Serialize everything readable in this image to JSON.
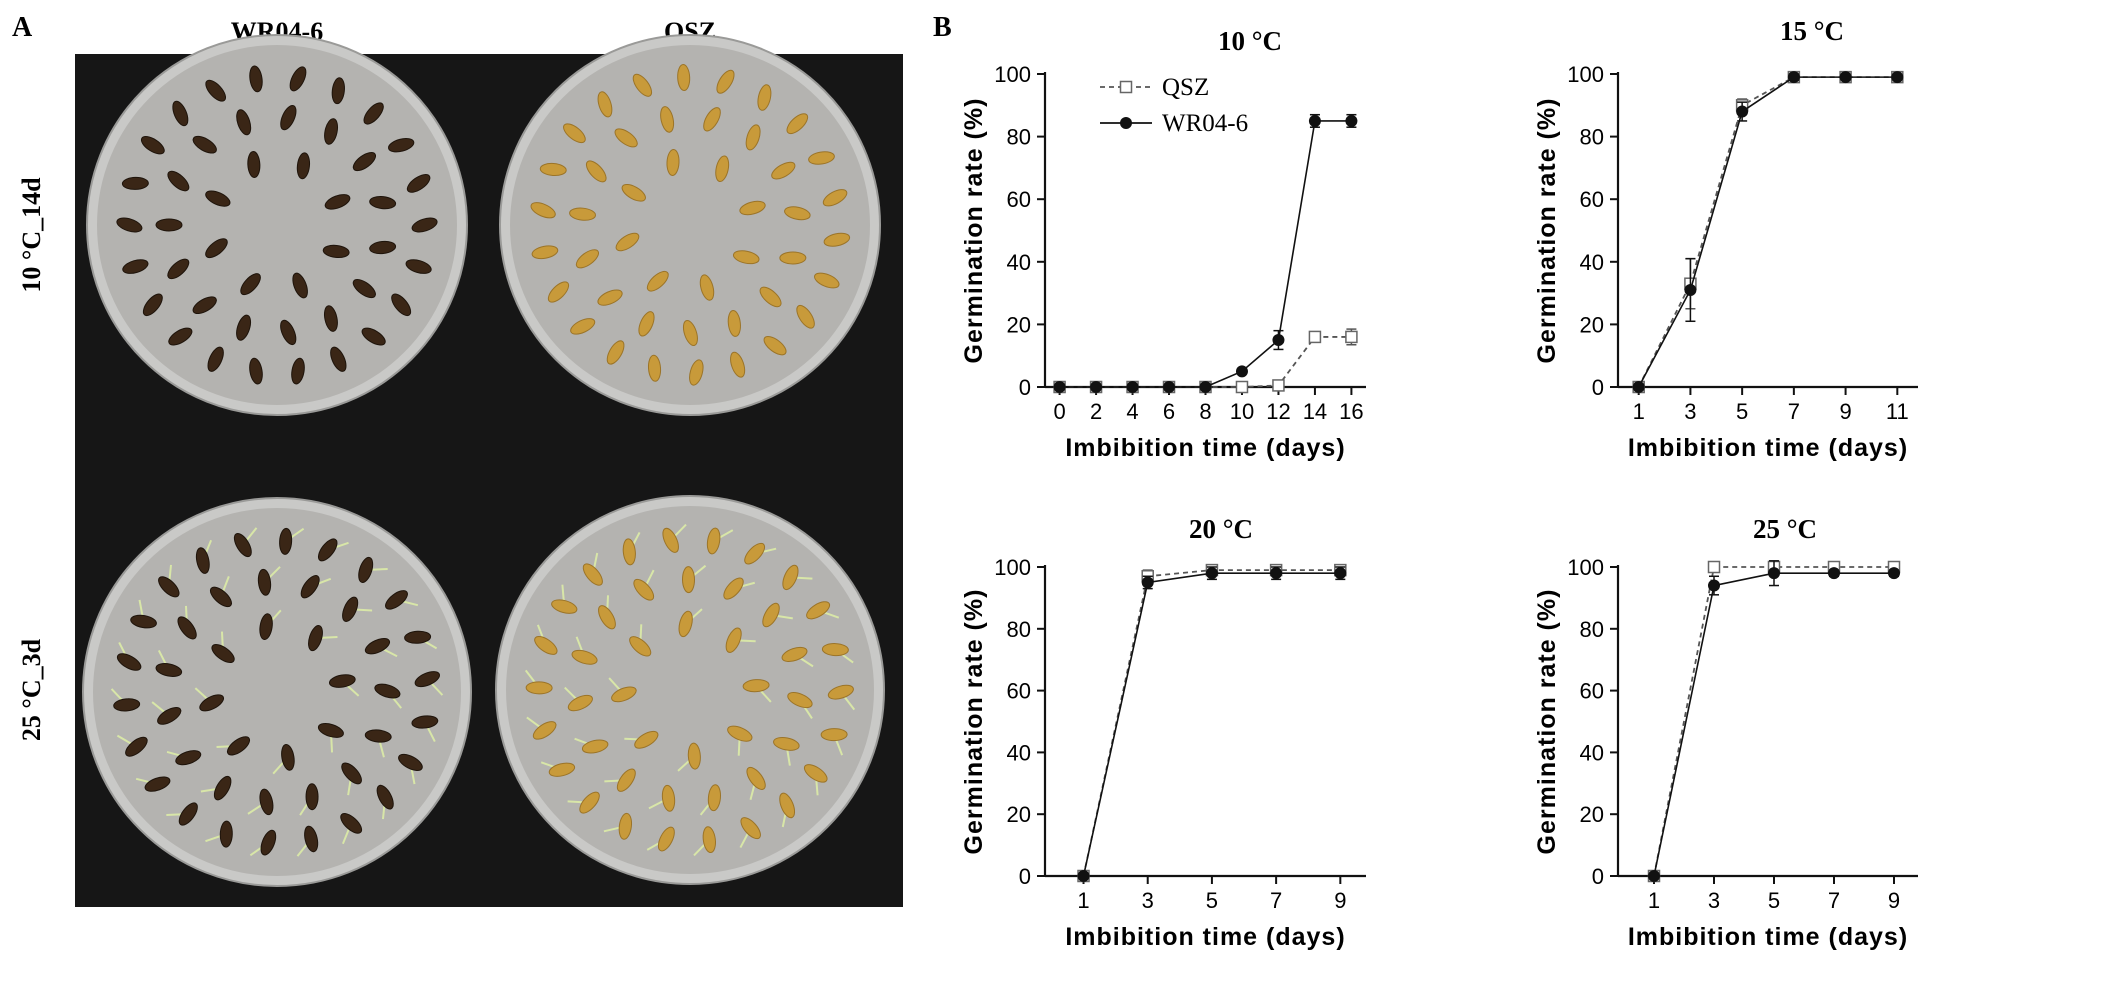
{
  "panel_a": {
    "letter": "A",
    "col_labels": [
      "WR04-6",
      "QSZ"
    ],
    "row_labels": [
      "10 °C_14d",
      "25 °C_3d"
    ]
  },
  "panel_b": {
    "letter": "B"
  },
  "colors": {
    "photo_background": "#161616",
    "dish": "#c9c9c7",
    "paper": "#b4b3b0",
    "seed_dark": "#3a2616",
    "seed_light": "#c89a3a",
    "sprout": "#d8e6a8"
  },
  "chart_data": [
    {
      "type": "line",
      "title": "10 °C",
      "xlabel": "Imbibition time (days)",
      "ylabel": "Germination rate (%)",
      "x": [
        0,
        2,
        4,
        6,
        8,
        10,
        12,
        14,
        16
      ],
      "xlim": [
        -0.8,
        16.8
      ],
      "ylim": [
        0,
        100
      ],
      "yticks": [
        0,
        20,
        40,
        60,
        80,
        100
      ],
      "legend_position": "top-left",
      "series": [
        {
          "name": "QSZ",
          "style": "dashed-open-square",
          "values": [
            0,
            0,
            0,
            0,
            0,
            0,
            0.5,
            16,
            16
          ],
          "errors": [
            0,
            0,
            0,
            0,
            0,
            0,
            0.5,
            1.5,
            2.5
          ]
        },
        {
          "name": "WR04-6",
          "style": "solid-filled-circle",
          "values": [
            0,
            0,
            0,
            0,
            0,
            5,
            15,
            85,
            85
          ],
          "errors": [
            0,
            0,
            0,
            0,
            0,
            0.8,
            3,
            2,
            2
          ]
        }
      ]
    },
    {
      "type": "line",
      "title": "15 °C",
      "xlabel": "Imbibition time (days)",
      "ylabel": "Germination rate (%)",
      "x": [
        1,
        3,
        5,
        7,
        9,
        11
      ],
      "xlim": [
        0.2,
        11.8
      ],
      "ylim": [
        0,
        100
      ],
      "yticks": [
        0,
        20,
        40,
        60,
        80,
        100
      ],
      "series": [
        {
          "style": "dashed-open-square",
          "values": [
            0,
            33,
            90,
            99,
            99,
            99
          ],
          "errors": [
            0,
            8,
            2,
            1,
            0.5,
            0.5
          ]
        },
        {
          "style": "solid-filled-circle",
          "values": [
            0,
            31,
            88,
            99,
            99,
            99
          ],
          "errors": [
            0,
            10,
            3,
            1,
            0.5,
            0.5
          ]
        }
      ]
    },
    {
      "type": "line",
      "title": "20 °C",
      "xlabel": "Imbibition time (days)",
      "ylabel": "Germination rate (%)",
      "x": [
        1,
        3,
        5,
        7,
        9
      ],
      "xlim": [
        -0.2,
        9.8
      ],
      "ylim": [
        0,
        100
      ],
      "yticks": [
        0,
        20,
        40,
        60,
        80,
        100
      ],
      "series": [
        {
          "style": "dashed-open-square",
          "values": [
            0,
            97,
            99,
            99,
            99
          ],
          "errors": [
            0,
            2,
            1,
            1,
            1
          ]
        },
        {
          "style": "solid-filled-circle",
          "values": [
            0,
            95,
            98,
            98,
            98
          ],
          "errors": [
            0,
            2,
            2,
            2,
            2
          ]
        }
      ]
    },
    {
      "type": "line",
      "title": "25 °C",
      "xlabel": "Imbibition time (days)",
      "ylabel": "Germination rate (%)",
      "x": [
        1,
        3,
        5,
        7,
        9
      ],
      "xlim": [
        -0.2,
        9.8
      ],
      "ylim": [
        0,
        100
      ],
      "yticks": [
        0,
        20,
        40,
        60,
        80,
        100
      ],
      "series": [
        {
          "style": "dashed-open-square",
          "values": [
            0,
            100,
            100,
            100,
            100
          ],
          "errors": [
            0,
            0,
            0,
            0,
            0
          ]
        },
        {
          "style": "solid-filled-circle",
          "values": [
            0,
            94,
            98,
            98,
            98
          ],
          "errors": [
            0,
            3,
            4,
            1,
            1
          ]
        }
      ]
    }
  ]
}
